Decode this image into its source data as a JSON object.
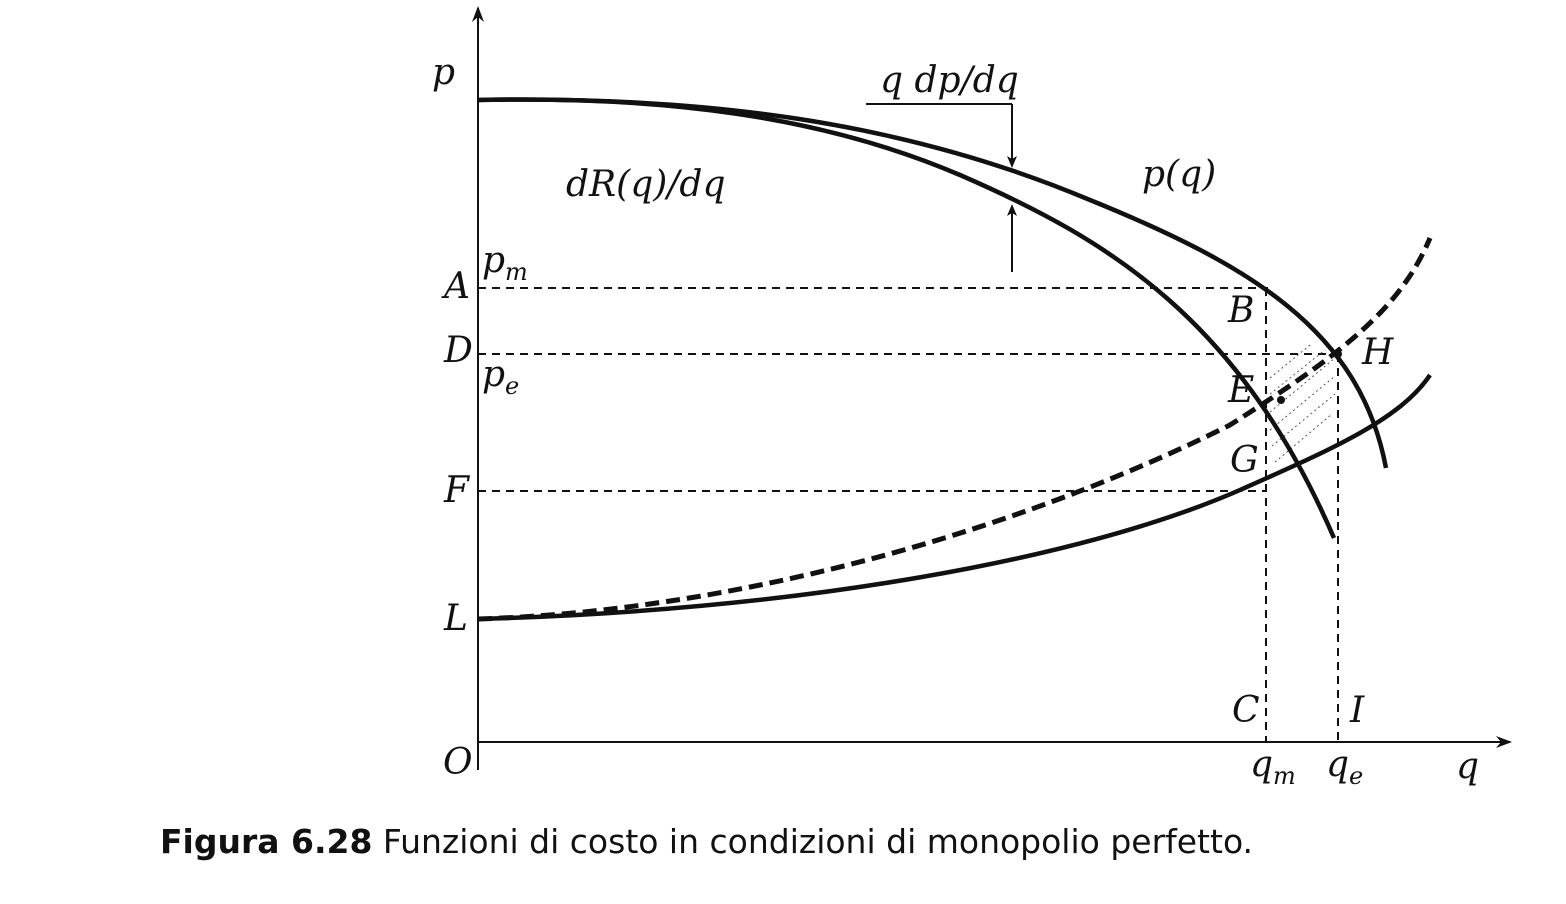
{
  "axes": {
    "y_label": "p",
    "x_label": "q",
    "origin_label": "O"
  },
  "points": {
    "A": "A",
    "D": "D",
    "F": "F",
    "L": "L",
    "B": "B",
    "E": "E",
    "G": "G",
    "H": "H",
    "C": "C",
    "I": "I"
  },
  "prices": {
    "pm_base": "p",
    "pm_sub": "m",
    "pe_base": "p",
    "pe_sub": "e"
  },
  "quantities": {
    "qm_base": "q",
    "qm_sub": "m",
    "qe_base": "q",
    "qe_sub": "e"
  },
  "curves": {
    "marginal_revenue": "dR(q)/dq",
    "demand": "p(q)",
    "gap": "q dp/dq"
  },
  "caption": {
    "number": "Figura 6.28",
    "text": "Funzioni di costo in condizioni di monopolio perfetto."
  }
}
